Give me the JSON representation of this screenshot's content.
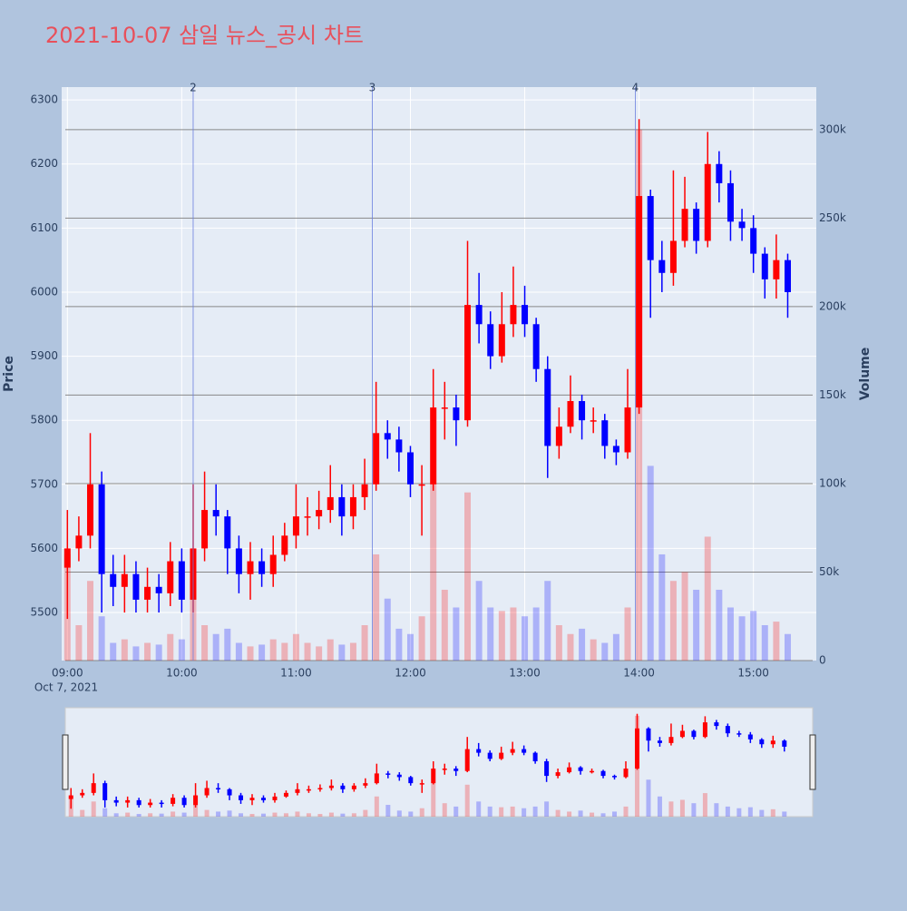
{
  "chart_data": {
    "type": "candlestick",
    "title": "2021-10-07 삼일 뉴스_공시 차트",
    "y_label": "Price",
    "y2_label": "Volume",
    "x_date_label": "Oct 7, 2021",
    "increasing_color": "#ff0000",
    "decreasing_color": "#0000ff",
    "x": [
      "09:00",
      "09:06",
      "09:12",
      "09:18",
      "09:24",
      "09:30",
      "09:36",
      "09:42",
      "09:48",
      "09:54",
      "10:00",
      "10:06",
      "10:12",
      "10:18",
      "10:24",
      "10:30",
      "10:36",
      "10:42",
      "10:48",
      "10:54",
      "11:00",
      "11:06",
      "11:12",
      "11:18",
      "11:24",
      "11:30",
      "11:36",
      "11:42",
      "11:48",
      "11:54",
      "12:00",
      "12:06",
      "12:12",
      "12:18",
      "12:24",
      "12:30",
      "12:36",
      "12:42",
      "12:48",
      "12:54",
      "13:00",
      "13:06",
      "13:12",
      "13:18",
      "13:24",
      "13:30",
      "13:36",
      "13:42",
      "13:48",
      "13:54",
      "14:00",
      "14:06",
      "14:12",
      "14:18",
      "14:24",
      "14:30",
      "14:36",
      "14:42",
      "14:48",
      "14:54",
      "15:00",
      "15:06",
      "15:12",
      "15:18"
    ],
    "open": [
      5570,
      5600,
      5620,
      5700,
      5560,
      5540,
      5560,
      5520,
      5540,
      5530,
      5580,
      5520,
      5600,
      5660,
      5650,
      5600,
      5560,
      5580,
      5560,
      5590,
      5620,
      5650,
      5650,
      5660,
      5680,
      5650,
      5680,
      5700,
      5780,
      5770,
      5750,
      5700,
      5700,
      5820,
      5820,
      5800,
      5980,
      5950,
      5900,
      5950,
      5980,
      5950,
      5880,
      5760,
      5790,
      5830,
      5800,
      5800,
      5760,
      5750,
      5820,
      6150,
      6050,
      6030,
      6080,
      6130,
      6080,
      6200,
      6170,
      6110,
      6100,
      6060,
      6020,
      6050
    ],
    "high": [
      5660,
      5650,
      5780,
      5720,
      5590,
      5590,
      5580,
      5570,
      5560,
      5610,
      5600,
      5700,
      5720,
      5700,
      5660,
      5620,
      5610,
      5600,
      5620,
      5640,
      5700,
      5680,
      5690,
      5730,
      5700,
      5700,
      5740,
      5860,
      5800,
      5790,
      5760,
      5730,
      5880,
      5860,
      5840,
      6080,
      6030,
      5970,
      6000,
      6040,
      6010,
      5960,
      5900,
      5820,
      5870,
      5840,
      5820,
      5810,
      5770,
      5880,
      6270,
      6160,
      6080,
      6190,
      6180,
      6140,
      6250,
      6220,
      6190,
      6130,
      6120,
      6070,
      6090,
      6060
    ],
    "low": [
      5490,
      5580,
      5600,
      5500,
      5510,
      5500,
      5500,
      5500,
      5500,
      5510,
      5500,
      5500,
      5580,
      5620,
      5560,
      5530,
      5520,
      5540,
      5540,
      5580,
      5600,
      5620,
      5630,
      5640,
      5620,
      5630,
      5660,
      5690,
      5740,
      5720,
      5680,
      5620,
      5690,
      5770,
      5760,
      5790,
      5920,
      5880,
      5890,
      5930,
      5930,
      5860,
      5710,
      5740,
      5780,
      5770,
      5780,
      5740,
      5730,
      5740,
      5810,
      5960,
      6000,
      6010,
      6070,
      6060,
      6070,
      6140,
      6080,
      6080,
      6030,
      5990,
      5990,
      5960
    ],
    "close": [
      5600,
      5620,
      5700,
      5560,
      5540,
      5560,
      5520,
      5540,
      5530,
      5580,
      5520,
      5600,
      5660,
      5650,
      5600,
      5560,
      5580,
      5560,
      5590,
      5620,
      5650,
      5650,
      5660,
      5680,
      5650,
      5680,
      5700,
      5780,
      5770,
      5750,
      5700,
      5700,
      5820,
      5820,
      5800,
      5980,
      5950,
      5900,
      5950,
      5980,
      5950,
      5880,
      5760,
      5790,
      5830,
      5800,
      5800,
      5760,
      5750,
      5820,
      6150,
      6050,
      6030,
      6080,
      6130,
      6080,
      6200,
      6170,
      6110,
      6100,
      6060,
      6020,
      6050,
      6000
    ],
    "volume": [
      60000,
      20000,
      45000,
      25000,
      10000,
      12000,
      8000,
      10000,
      9000,
      15000,
      12000,
      35000,
      20000,
      15000,
      18000,
      10000,
      8000,
      9000,
      12000,
      10000,
      15000,
      10000,
      8000,
      12000,
      9000,
      10000,
      20000,
      60000,
      35000,
      18000,
      15000,
      25000,
      100000,
      40000,
      30000,
      95000,
      45000,
      30000,
      28000,
      30000,
      25000,
      30000,
      45000,
      20000,
      15000,
      18000,
      12000,
      10000,
      15000,
      30000,
      300000,
      110000,
      60000,
      45000,
      50000,
      40000,
      70000,
      40000,
      30000,
      25000,
      28000,
      20000,
      22000,
      15000
    ],
    "annotations": [
      {
        "x": "10:06",
        "text": "2"
      },
      {
        "x": "11:40",
        "text": "3"
      },
      {
        "x": "13:58",
        "text": "4"
      }
    ],
    "xlim": [
      "08:57",
      "15:33"
    ],
    "xticks": [
      "09:00",
      "10:00",
      "11:00",
      "12:00",
      "13:00",
      "14:00",
      "15:00"
    ],
    "ylim": [
      5425,
      6320
    ],
    "yticks": [
      5500,
      5600,
      5700,
      5800,
      5900,
      6000,
      6100,
      6200,
      6300
    ],
    "y2lim": [
      0,
      324000
    ],
    "y2ticks": [
      0,
      {
        "value": 50000,
        "label": "50k"
      },
      {
        "value": 100000,
        "label": "100k"
      },
      {
        "value": 150000,
        "label": "150k"
      },
      {
        "value": 200000,
        "label": "200k"
      },
      {
        "value": 250000,
        "label": "250k"
      },
      {
        "value": 300000,
        "label": "300k"
      }
    ],
    "grid": true,
    "range_slider": true
  }
}
